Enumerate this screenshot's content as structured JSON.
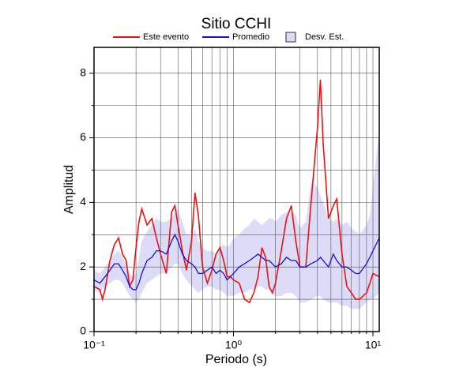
{
  "chart_data": {
    "type": "line",
    "title": "Sitio CCHI",
    "xlabel": "Periodo (s)",
    "ylabel": "Amplitud",
    "log_x": true,
    "grid": true,
    "xlim": [
      0.1,
      11.1
    ],
    "ylim": [
      0,
      8.8
    ],
    "xticks": [
      {
        "value": 0.1,
        "label": "10⁻¹"
      },
      {
        "value": 1,
        "label": "10⁰"
      },
      {
        "value": 10,
        "label": "10¹"
      }
    ],
    "xminor": [
      0.2,
      0.3,
      0.4,
      0.5,
      0.6,
      0.7,
      0.8,
      0.9,
      2,
      3,
      4,
      5,
      6,
      7,
      8,
      9
    ],
    "yticks": [
      0,
      2,
      4,
      6,
      8
    ],
    "yminor": [
      1,
      3,
      5,
      7
    ],
    "x": [
      0.1,
      0.11,
      0.115,
      0.12,
      0.13,
      0.14,
      0.15,
      0.16,
      0.17,
      0.18,
      0.19,
      0.2,
      0.21,
      0.22,
      0.24,
      0.26,
      0.28,
      0.3,
      0.33,
      0.36,
      0.38,
      0.4,
      0.43,
      0.46,
      0.5,
      0.53,
      0.56,
      0.6,
      0.65,
      0.7,
      0.75,
      0.8,
      0.85,
      0.9,
      0.95,
      1.0,
      1.1,
      1.2,
      1.3,
      1.4,
      1.5,
      1.6,
      1.7,
      1.8,
      1.9,
      2.0,
      2.2,
      2.4,
      2.6,
      2.8,
      3.0,
      3.3,
      3.6,
      4.0,
      4.2,
      4.4,
      4.8,
      5.2,
      5.5,
      6.0,
      6.5,
      7.0,
      7.5,
      8.0,
      9.0,
      9.5,
      10,
      11.1
    ],
    "series": [
      {
        "name": "Este evento",
        "color": "#ee1111",
        "values": [
          1.4,
          1.3,
          1.0,
          1.3,
          2.2,
          2.7,
          2.9,
          2.4,
          2.2,
          1.4,
          1.6,
          2.6,
          3.4,
          3.8,
          3.3,
          3.5,
          2.9,
          2.4,
          1.8,
          3.7,
          3.9,
          3.3,
          2.5,
          1.9,
          2.8,
          4.3,
          3.6,
          2.0,
          1.5,
          1.9,
          2.4,
          2.6,
          2.2,
          1.7,
          1.7,
          1.6,
          1.5,
          1.0,
          0.9,
          1.2,
          1.7,
          2.6,
          2.3,
          1.4,
          1.2,
          1.5,
          2.5,
          3.5,
          3.9,
          2.8,
          2.0,
          2.0,
          4.0,
          6.3,
          7.8,
          5.8,
          3.5,
          3.9,
          4.1,
          2.4,
          1.4,
          1.2,
          1.0,
          1.0,
          1.2,
          1.5,
          1.8,
          1.7
        ]
      },
      {
        "name": "Promedio",
        "color": "#1111dd",
        "values": [
          1.6,
          1.5,
          1.6,
          1.7,
          1.9,
          2.1,
          2.1,
          1.9,
          1.7,
          1.4,
          1.3,
          1.3,
          1.5,
          1.8,
          2.2,
          2.3,
          2.5,
          2.5,
          2.4,
          2.8,
          3.0,
          2.8,
          2.4,
          2.2,
          2.1,
          2.0,
          1.8,
          1.8,
          1.9,
          2.0,
          1.8,
          1.9,
          1.8,
          1.6,
          1.7,
          1.8,
          2.0,
          2.1,
          2.2,
          2.3,
          2.4,
          2.3,
          2.2,
          2.2,
          2.1,
          2.0,
          2.1,
          2.3,
          2.2,
          2.2,
          2.0,
          2.0,
          2.1,
          2.2,
          2.3,
          2.2,
          2.0,
          2.4,
          2.2,
          2.0,
          2.0,
          1.9,
          1.8,
          1.8,
          2.1,
          2.3,
          2.5,
          2.9
        ]
      },
      {
        "name": "Desv. Est.",
        "color": "#dcdcf8",
        "upper": [
          1.9,
          1.8,
          1.9,
          2.0,
          2.2,
          2.4,
          2.5,
          2.3,
          2.1,
          1.8,
          1.7,
          1.8,
          2.3,
          2.8,
          3.1,
          3.3,
          3.5,
          3.4,
          3.4,
          3.5,
          3.7,
          3.8,
          3.4,
          3.0,
          3.0,
          3.2,
          2.8,
          2.6,
          2.5,
          2.5,
          2.4,
          2.6,
          2.7,
          2.6,
          2.7,
          2.9,
          3.0,
          3.2,
          3.3,
          3.5,
          3.4,
          3.3,
          3.4,
          3.5,
          3.5,
          3.4,
          3.6,
          3.7,
          3.7,
          3.6,
          3.2,
          3.4,
          4.6,
          4.5,
          4.2,
          4.0,
          3.5,
          3.4,
          3.5,
          3.3,
          3.4,
          3.2,
          3.1,
          3.0,
          3.3,
          3.6,
          4.5,
          6.2
        ],
        "lower": [
          1.3,
          1.2,
          1.3,
          1.4,
          1.5,
          1.6,
          1.6,
          1.5,
          1.3,
          1.1,
          1.0,
          0.9,
          1.0,
          1.2,
          1.5,
          1.6,
          1.7,
          1.8,
          1.8,
          2.0,
          2.1,
          2.1,
          1.8,
          1.6,
          1.4,
          1.3,
          1.2,
          1.3,
          1.4,
          1.4,
          1.3,
          1.3,
          1.2,
          1.1,
          1.1,
          1.1,
          1.2,
          1.2,
          1.3,
          1.3,
          1.4,
          1.4,
          1.3,
          1.3,
          1.2,
          1.1,
          1.1,
          1.2,
          1.2,
          1.1,
          0.9,
          0.9,
          1.0,
          1.1,
          1.1,
          1.0,
          0.9,
          0.9,
          0.9,
          0.8,
          0.8,
          0.7,
          0.7,
          0.7,
          0.9,
          1.0,
          1.0,
          1.2
        ]
      }
    ]
  }
}
